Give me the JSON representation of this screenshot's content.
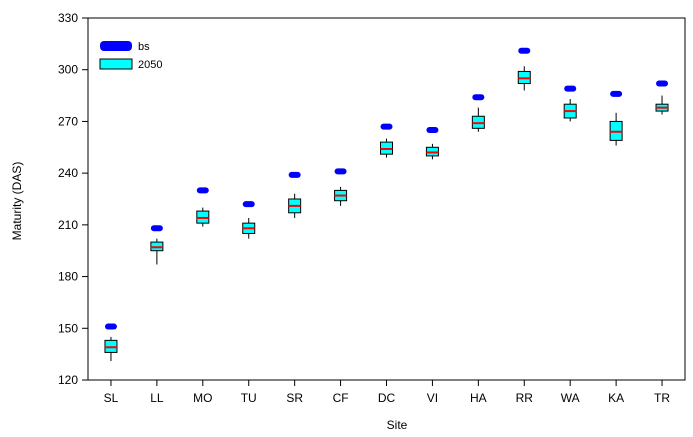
{
  "chart_data": {
    "type": "box",
    "xlabel": "Site",
    "ylabel": "Maturity (DAS)",
    "ylim": [
      120,
      330
    ],
    "yticks": [
      120,
      150,
      180,
      210,
      240,
      270,
      300,
      330
    ],
    "grid": false,
    "legend_position": "top-left",
    "categories": [
      "SL",
      "LL",
      "MO",
      "TU",
      "SR",
      "CF",
      "DC",
      "VI",
      "HA",
      "RR",
      "WA",
      "KA",
      "TR"
    ],
    "series": [
      {
        "name": "bs",
        "style": "bar-marker",
        "color": "#0000ff",
        "values": [
          151,
          208,
          230,
          222,
          239,
          241,
          267,
          265,
          284,
          311,
          289,
          286,
          292
        ]
      },
      {
        "name": "2050",
        "style": "box",
        "color": "#00ffff",
        "median_color": "#ff0000",
        "boxes": [
          {
            "min": 131,
            "q1": 136,
            "median": 139,
            "q3": 143,
            "max": 145
          },
          {
            "min": 187,
            "q1": 195,
            "median": 197,
            "q3": 200,
            "max": 202
          },
          {
            "min": 209,
            "q1": 211,
            "median": 214,
            "q3": 218,
            "max": 220
          },
          {
            "min": 202,
            "q1": 205,
            "median": 208,
            "q3": 211,
            "max": 214
          },
          {
            "min": 214,
            "q1": 217,
            "median": 221,
            "q3": 225,
            "max": 228
          },
          {
            "min": 221,
            "q1": 224,
            "median": 227,
            "q3": 230,
            "max": 232
          },
          {
            "min": 249,
            "q1": 251,
            "median": 254,
            "q3": 258,
            "max": 260
          },
          {
            "min": 248,
            "q1": 250,
            "median": 252,
            "q3": 255,
            "max": 257
          },
          {
            "min": 264,
            "q1": 266,
            "median": 269,
            "q3": 273,
            "max": 278
          },
          {
            "min": 288,
            "q1": 292,
            "median": 295,
            "q3": 299,
            "max": 302
          },
          {
            "min": 270,
            "q1": 272,
            "median": 276,
            "q3": 280,
            "max": 283
          },
          {
            "min": 256,
            "q1": 259,
            "median": 264,
            "q3": 270,
            "max": 275
          },
          {
            "min": 274,
            "q1": 276,
            "median": 278,
            "q3": 280,
            "max": 285
          }
        ]
      }
    ]
  }
}
